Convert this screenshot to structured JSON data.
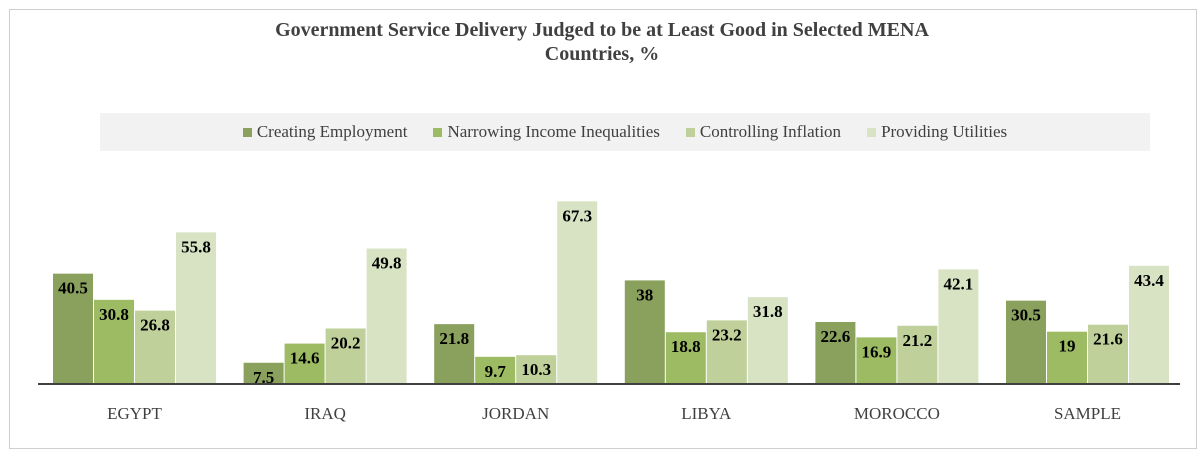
{
  "chart_data": {
    "type": "bar",
    "title": "Government Service Delivery Judged to be at Least Good in Selected MENA Countries, %",
    "title_lines": [
      "Government Service Delivery Judged to be at Least Good in Selected MENA",
      "Countries, %"
    ],
    "categories": [
      "EGYPT",
      "IRAQ",
      "JORDAN",
      "LIBYA",
      "MOROCCO",
      "SAMPLE"
    ],
    "series": [
      {
        "name": "Creating Employment",
        "color": "#8aa05d",
        "values": [
          40.5,
          7.5,
          21.8,
          38,
          22.6,
          30.5
        ]
      },
      {
        "name": "Narrowing Income Inequalities",
        "color": "#9dbb63",
        "values": [
          30.8,
          14.6,
          9.7,
          18.8,
          16.9,
          19
        ]
      },
      {
        "name": "Controlling Inflation",
        "color": "#bfd09a",
        "values": [
          26.8,
          20.2,
          10.3,
          23.2,
          21.2,
          21.6
        ]
      },
      {
        "name": "Providing Utilities",
        "color": "#d8e3c3",
        "values": [
          55.8,
          49.8,
          67.3,
          31.8,
          42.1,
          43.4
        ]
      }
    ],
    "xlabel": "",
    "ylabel": "",
    "ylim": [
      0,
      70
    ],
    "grid": false,
    "legend_position": "top"
  }
}
